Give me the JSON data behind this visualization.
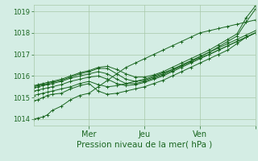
{
  "bg_color": "#d4ede4",
  "grid_color": "#a8c8a8",
  "line_color": "#1a6620",
  "xlabel": "Pression niveau de la mer( hPa )",
  "ylim": [
    1013.7,
    1019.3
  ],
  "yticks": [
    1014,
    1015,
    1016,
    1017,
    1018,
    1019
  ],
  "xlim": [
    0,
    96
  ],
  "xtick_positions": [
    24,
    48,
    72,
    96
  ],
  "xtick_labels": [
    "Mer",
    "Jeu",
    "Ven",
    ""
  ],
  "series": [
    {
      "x": [
        0,
        2,
        4,
        6,
        8,
        12,
        16,
        20,
        24,
        28,
        32,
        36,
        40,
        44,
        48,
        52,
        56,
        60,
        64,
        68,
        72,
        76,
        80,
        84,
        88,
        92,
        96
      ],
      "y": [
        1014.0,
        1014.05,
        1014.1,
        1014.2,
        1014.4,
        1014.6,
        1014.9,
        1015.1,
        1015.2,
        1015.5,
        1015.8,
        1016.1,
        1016.4,
        1016.6,
        1016.8,
        1017.0,
        1017.2,
        1017.4,
        1017.6,
        1017.8,
        1018.0,
        1018.1,
        1018.2,
        1018.3,
        1018.4,
        1018.5,
        1018.6
      ]
    },
    {
      "x": [
        0,
        2,
        4,
        6,
        8,
        12,
        16,
        20,
        24,
        28,
        32,
        36,
        40,
        44,
        48,
        52,
        56,
        60,
        64,
        68,
        72,
        76,
        80,
        84,
        88,
        92,
        96
      ],
      "y": [
        1014.85,
        1014.9,
        1015.0,
        1015.1,
        1015.15,
        1015.2,
        1015.4,
        1015.55,
        1015.65,
        1015.3,
        1015.15,
        1015.2,
        1015.3,
        1015.4,
        1015.5,
        1015.65,
        1015.8,
        1016.0,
        1016.2,
        1016.4,
        1016.6,
        1016.8,
        1017.0,
        1017.2,
        1017.5,
        1017.8,
        1018.0
      ]
    },
    {
      "x": [
        0,
        2,
        4,
        6,
        8,
        12,
        16,
        20,
        24,
        28,
        32,
        36,
        40,
        44,
        48,
        52,
        56,
        60,
        64,
        68,
        72,
        76,
        80,
        84,
        88,
        92,
        96
      ],
      "y": [
        1015.1,
        1015.15,
        1015.2,
        1015.25,
        1015.3,
        1015.4,
        1015.5,
        1015.65,
        1015.75,
        1015.6,
        1015.5,
        1015.55,
        1015.65,
        1015.75,
        1015.85,
        1016.0,
        1016.15,
        1016.3,
        1016.5,
        1016.7,
        1016.9,
        1017.1,
        1017.3,
        1017.5,
        1017.7,
        1017.9,
        1018.1
      ]
    },
    {
      "x": [
        0,
        2,
        4,
        6,
        8,
        12,
        16,
        20,
        24,
        28,
        32,
        36,
        40,
        44,
        48,
        52,
        56,
        60,
        64,
        68,
        72,
        76,
        80,
        84,
        88,
        92,
        96
      ],
      "y": [
        1015.3,
        1015.35,
        1015.4,
        1015.45,
        1015.5,
        1015.6,
        1015.75,
        1015.85,
        1015.95,
        1016.0,
        1015.85,
        1015.65,
        1015.55,
        1015.6,
        1015.7,
        1015.85,
        1016.0,
        1016.2,
        1016.4,
        1016.6,
        1016.8,
        1017.0,
        1017.2,
        1017.4,
        1017.6,
        1017.8,
        1018.0
      ]
    },
    {
      "x": [
        0,
        2,
        4,
        6,
        8,
        12,
        16,
        20,
        24,
        28,
        32,
        36,
        40,
        44,
        48,
        52,
        56,
        60,
        64,
        68,
        72,
        76,
        80,
        84,
        88,
        92,
        96
      ],
      "y": [
        1015.45,
        1015.5,
        1015.55,
        1015.6,
        1015.65,
        1015.75,
        1015.9,
        1016.0,
        1016.1,
        1016.2,
        1016.1,
        1015.85,
        1015.65,
        1015.65,
        1015.75,
        1015.9,
        1016.05,
        1016.25,
        1016.45,
        1016.65,
        1016.85,
        1017.0,
        1017.2,
        1017.4,
        1017.6,
        1017.8,
        1018.0
      ]
    },
    {
      "x": [
        0,
        2,
        4,
        6,
        8,
        12,
        16,
        20,
        24,
        28,
        32,
        36,
        40,
        44,
        48,
        52,
        56,
        60,
        64,
        68,
        72,
        76,
        80,
        84,
        88,
        92,
        96
      ],
      "y": [
        1015.5,
        1015.55,
        1015.6,
        1015.65,
        1015.7,
        1015.8,
        1015.95,
        1016.1,
        1016.2,
        1016.35,
        1016.35,
        1016.1,
        1015.85,
        1015.75,
        1015.8,
        1015.95,
        1016.1,
        1016.3,
        1016.5,
        1016.7,
        1016.9,
        1017.1,
        1017.35,
        1017.6,
        1017.85,
        1018.5,
        1019.1
      ]
    },
    {
      "x": [
        0,
        2,
        4,
        6,
        8,
        12,
        16,
        20,
        24,
        28,
        32,
        36,
        40,
        44,
        48,
        52,
        56,
        60,
        64,
        68,
        72,
        76,
        80,
        84,
        88,
        92,
        96
      ],
      "y": [
        1015.55,
        1015.6,
        1015.65,
        1015.7,
        1015.75,
        1015.85,
        1016.0,
        1016.15,
        1016.25,
        1016.4,
        1016.45,
        1016.3,
        1016.1,
        1015.95,
        1015.95,
        1016.05,
        1016.2,
        1016.4,
        1016.6,
        1016.8,
        1017.0,
        1017.2,
        1017.45,
        1017.7,
        1017.95,
        1018.7,
        1019.25
      ]
    }
  ]
}
